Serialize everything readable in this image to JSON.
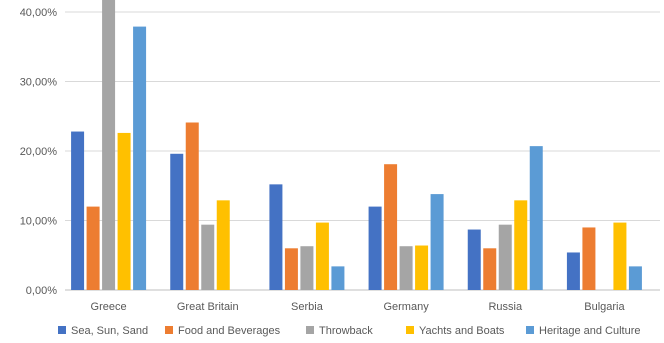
{
  "chart_data": {
    "type": "bar",
    "title": "",
    "xlabel": "",
    "ylabel": "",
    "categories": [
      "Greece",
      "Great Britain",
      "Serbia",
      "Germany",
      "Russia",
      "Bulgaria"
    ],
    "series": [
      {
        "name": "Sea, Sun, Sand",
        "color": "#4472C4",
        "values": [
          22.8,
          19.6,
          15.2,
          12.0,
          8.7,
          5.4
        ]
      },
      {
        "name": "Food and Beverages",
        "color": "#ED7D31",
        "values": [
          12.0,
          24.1,
          6.0,
          18.1,
          6.0,
          9.0
        ]
      },
      {
        "name": "Throwback",
        "color": "#A5A5A5",
        "values": [
          43.7,
          9.4,
          6.3,
          6.3,
          9.4,
          0
        ]
      },
      {
        "name": "Yachts and Boats",
        "color": "#FFC000",
        "values": [
          22.6,
          12.9,
          9.7,
          6.4,
          12.9,
          9.7
        ]
      },
      {
        "name": "Heritage and Culture",
        "color": "#5B9BD5",
        "values": [
          37.9,
          0,
          3.4,
          13.8,
          20.7,
          3.4
        ]
      }
    ],
    "ylim": [
      0,
      40
    ],
    "yticks": [
      0,
      10,
      20,
      30,
      40
    ],
    "ytick_labels": [
      "0,00%",
      "10,00%",
      "20,00%",
      "30,00%",
      "40,00%"
    ],
    "grid": true,
    "legend_position": "bottom"
  }
}
